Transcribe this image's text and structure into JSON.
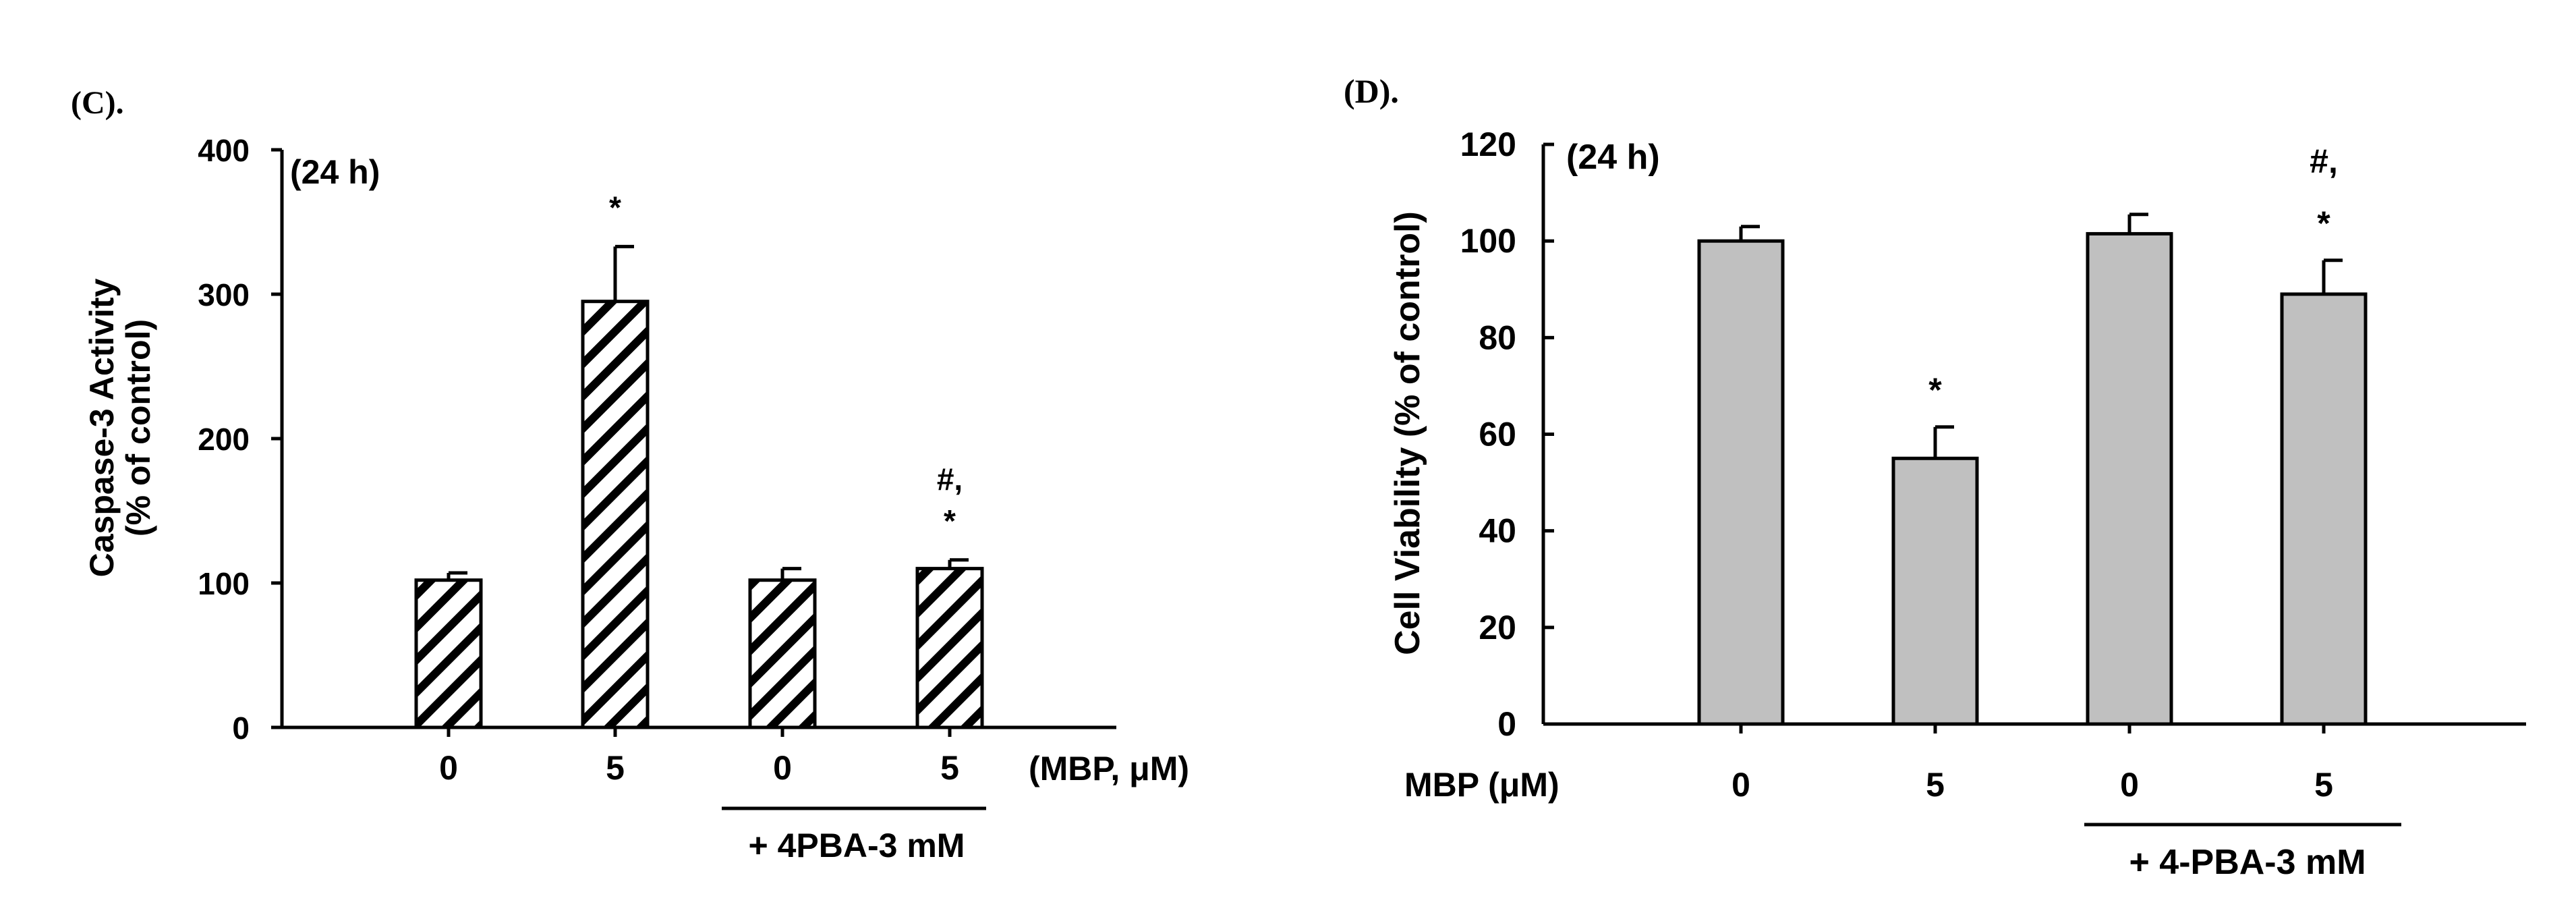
{
  "chart_data": [
    {
      "panel": "(C).",
      "type": "bar",
      "inset_label": "(24 h)",
      "ylabel_lines": [
        "Caspase-3 Activity",
        "(% of control)"
      ],
      "ylim": [
        0,
        400
      ],
      "yticks": [
        "0",
        "100",
        "200",
        "300",
        "400"
      ],
      "ytick_values": [
        0,
        100,
        200,
        300,
        400
      ],
      "categories": [
        "0",
        "5",
        "0",
        "5"
      ],
      "values": [
        102,
        295,
        102,
        110
      ],
      "errors": [
        5,
        38,
        8,
        6
      ],
      "significance": [
        [],
        [
          "*"
        ],
        [],
        [
          "#,",
          "*"
        ]
      ],
      "x_unit_label": "(MBP, μM)",
      "treatment_label": "+ 4PBA-3 mM",
      "bar_style": "hatched",
      "bar_color": "#ffffff",
      "hatch_color": "#000000"
    },
    {
      "panel": "(D).",
      "type": "bar",
      "inset_label": "(24 h)",
      "ylabel_lines": [
        "Cell Viability (% of control)"
      ],
      "ylim": [
        0,
        120
      ],
      "yticks": [
        "0",
        "20",
        "40",
        "60",
        "80",
        "100",
        "120"
      ],
      "ytick_values": [
        0,
        20,
        40,
        60,
        80,
        100,
        120
      ],
      "categories": [
        "0",
        "5",
        "0",
        "5"
      ],
      "values": [
        100,
        55,
        101.5,
        89
      ],
      "errors": [
        3,
        6.5,
        4,
        7
      ],
      "significance": [
        [],
        [
          "*"
        ],
        [],
        [
          "#,",
          "*"
        ]
      ],
      "x_unit_label": "MBP (μM)",
      "treatment_label": "+ 4-PBA-3 mM",
      "bar_style": "solid",
      "bar_color": "#c0c0c0"
    }
  ]
}
